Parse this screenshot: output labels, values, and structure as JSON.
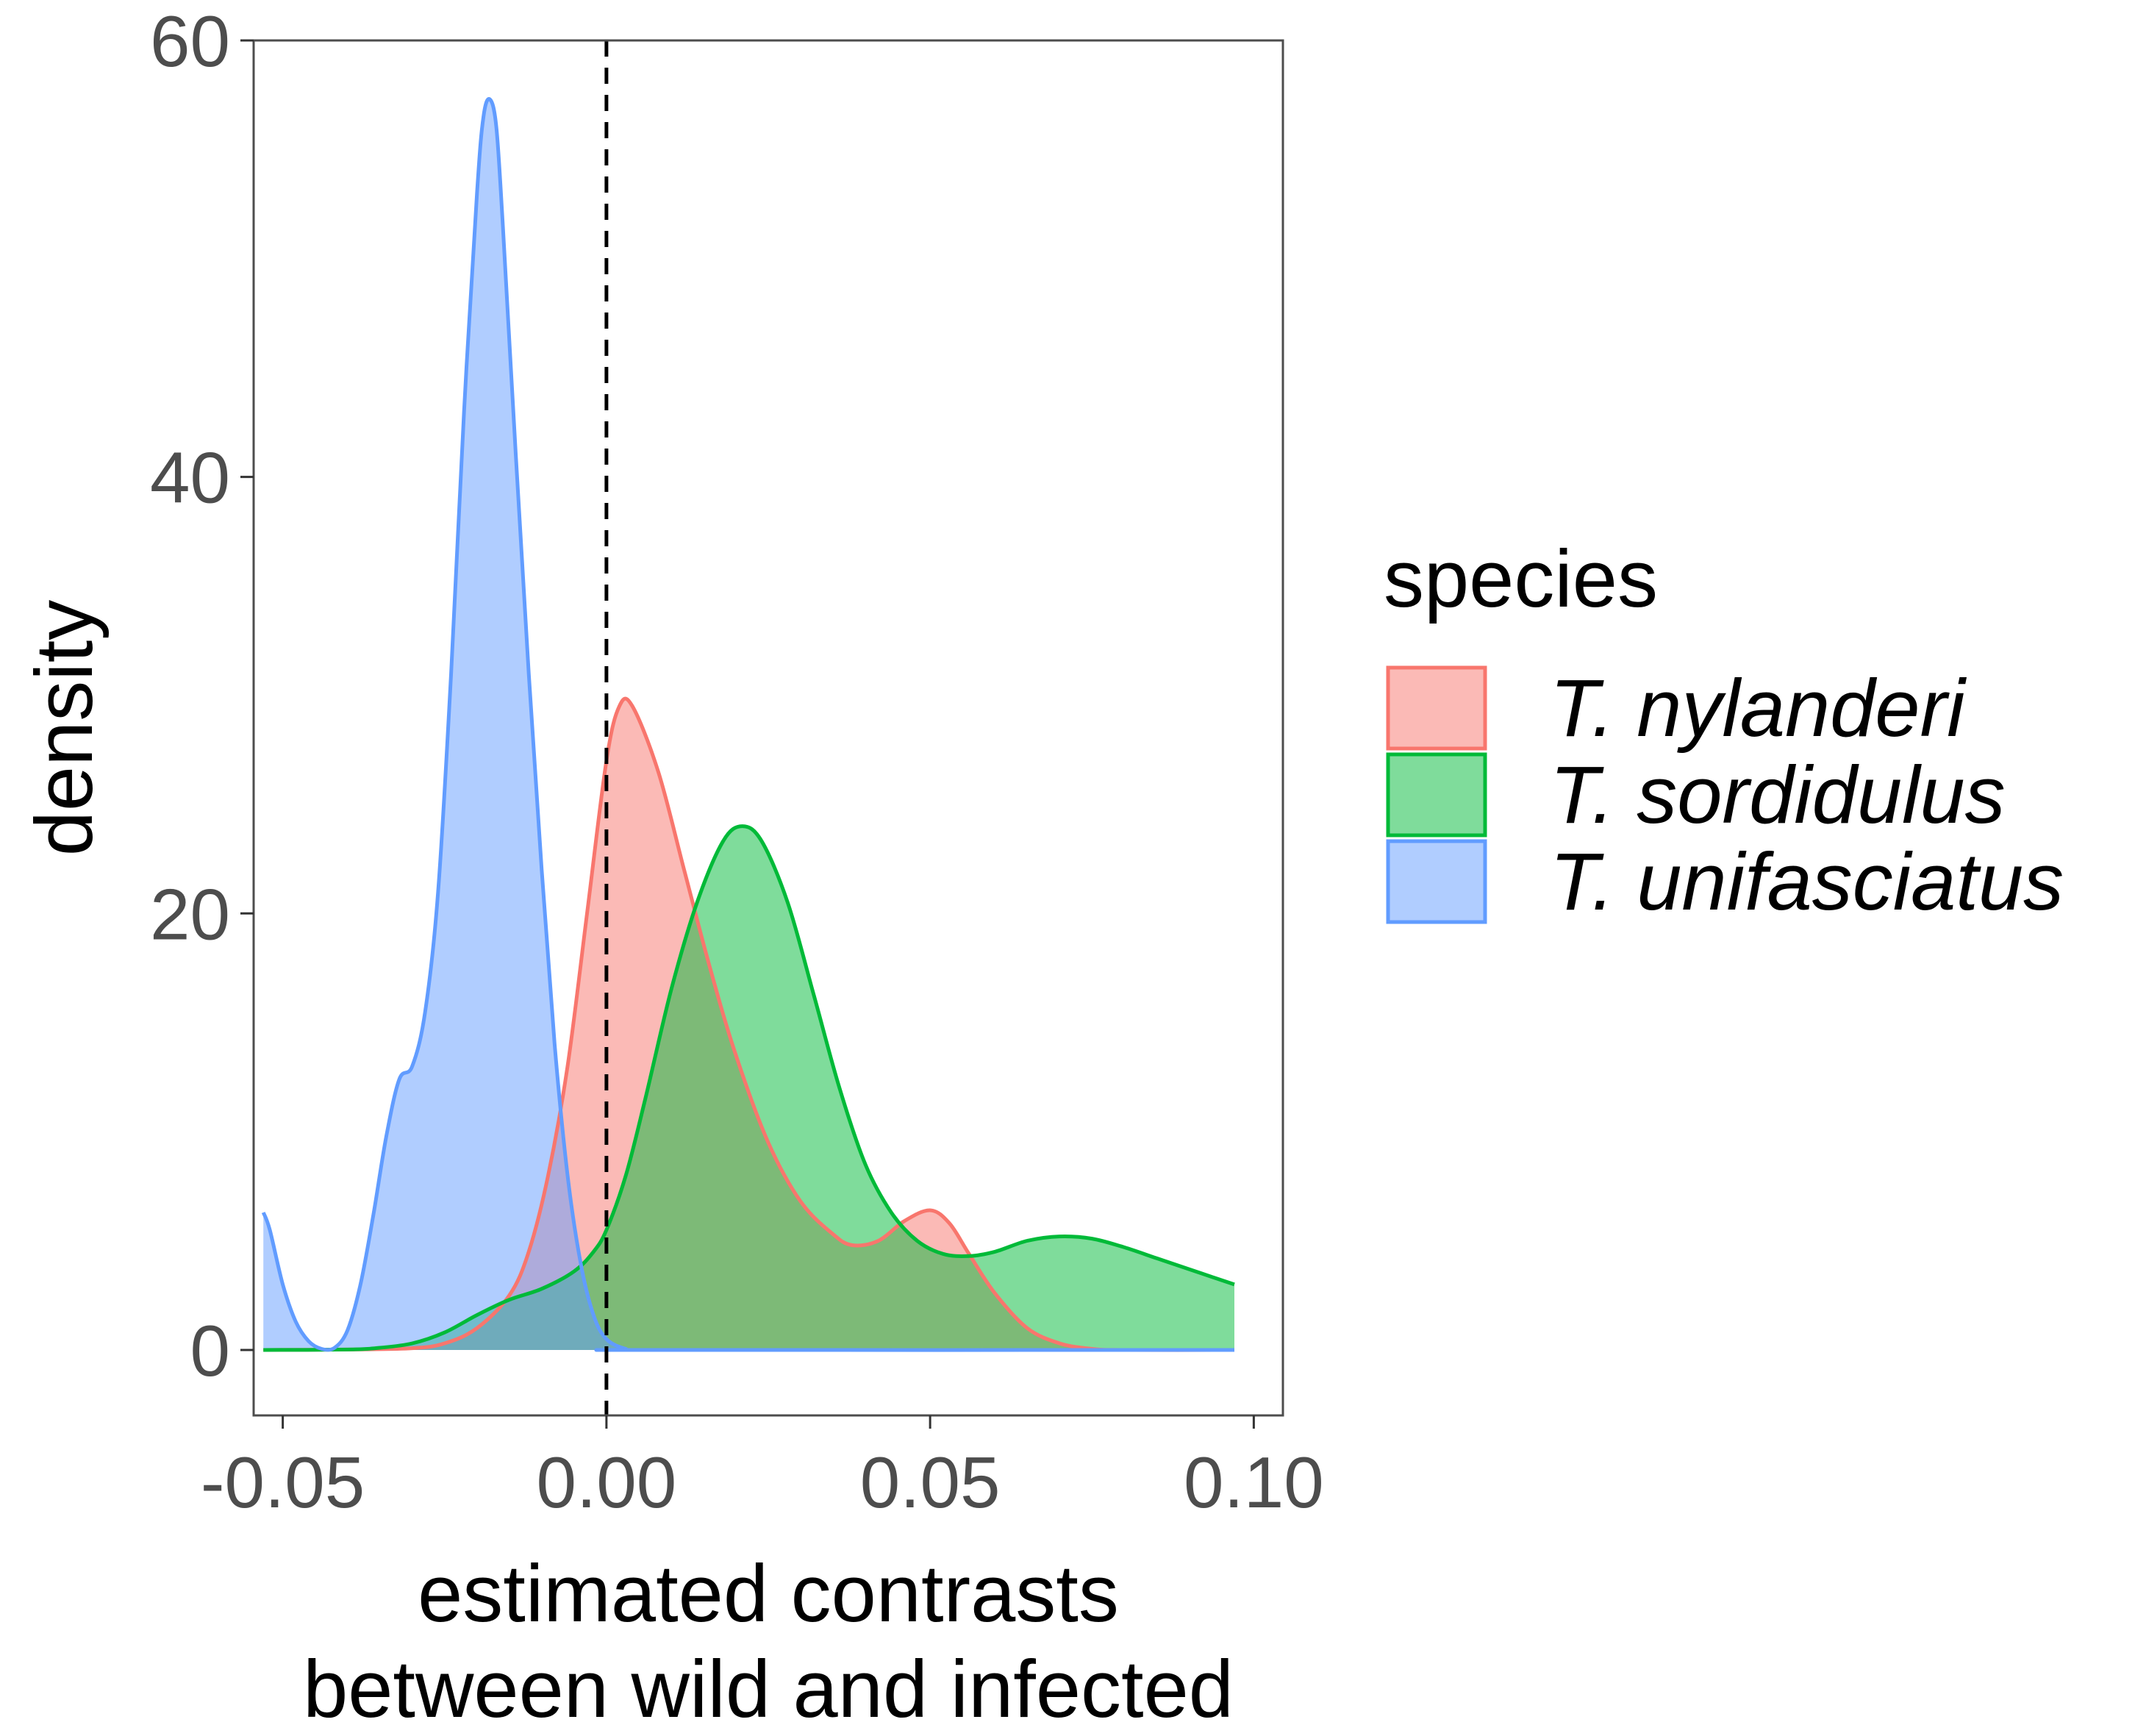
{
  "chart_data": {
    "type": "area",
    "title": "",
    "xlabel_lines": [
      "estimated contrasts",
      "between wild and infected"
    ],
    "ylabel": "density",
    "xlim": [
      -0.0545,
      0.1045
    ],
    "ylim": [
      -3,
      60
    ],
    "x_ticks": [
      -0.05,
      0.0,
      0.05,
      0.1
    ],
    "x_tick_labels": [
      "-0.05",
      "0.00",
      "0.05",
      "0.10"
    ],
    "y_ticks": [
      0,
      20,
      40,
      60
    ],
    "y_tick_labels": [
      "0",
      "20",
      "40",
      "60"
    ],
    "reference_line": {
      "x": 0.0,
      "style": "dashed"
    },
    "legend": {
      "title": "species",
      "position": "right"
    },
    "series": [
      {
        "name": "T. nylanderi",
        "fill": "#F8766D",
        "stroke": "#F8766D",
        "points": [
          [
            -0.053,
            0
          ],
          [
            -0.04,
            0.02
          ],
          [
            -0.03,
            0.08
          ],
          [
            -0.025,
            0.3
          ],
          [
            -0.02,
            1.0
          ],
          [
            -0.015,
            2.5
          ],
          [
            -0.012,
            4.5
          ],
          [
            -0.009,
            8
          ],
          [
            -0.006,
            13
          ],
          [
            -0.003,
            20
          ],
          [
            0.0,
            27
          ],
          [
            0.002,
            29.5
          ],
          [
            0.004,
            29.5
          ],
          [
            0.008,
            26.5
          ],
          [
            0.012,
            22
          ],
          [
            0.016,
            17.5
          ],
          [
            0.02,
            13.5
          ],
          [
            0.025,
            9.5
          ],
          [
            0.03,
            6.8
          ],
          [
            0.035,
            5.3
          ],
          [
            0.038,
            4.8
          ],
          [
            0.042,
            5.0
          ],
          [
            0.046,
            5.9
          ],
          [
            0.05,
            6.4
          ],
          [
            0.053,
            5.8
          ],
          [
            0.056,
            4.4
          ],
          [
            0.06,
            2.6
          ],
          [
            0.065,
            1.0
          ],
          [
            0.07,
            0.3
          ],
          [
            0.075,
            0.05
          ],
          [
            0.08,
            0
          ],
          [
            0.097,
            0
          ]
        ]
      },
      {
        "name": "T. sordidulus",
        "fill": "#00BA38",
        "stroke": "#00BA38",
        "points": [
          [
            -0.053,
            0
          ],
          [
            -0.04,
            0.02
          ],
          [
            -0.035,
            0.1
          ],
          [
            -0.03,
            0.3
          ],
          [
            -0.025,
            0.8
          ],
          [
            -0.02,
            1.6
          ],
          [
            -0.015,
            2.3
          ],
          [
            -0.01,
            2.8
          ],
          [
            -0.005,
            3.6
          ],
          [
            -0.002,
            4.5
          ],
          [
            0.0,
            5.5
          ],
          [
            0.003,
            8
          ],
          [
            0.006,
            11.5
          ],
          [
            0.01,
            16.5
          ],
          [
            0.014,
            20.5
          ],
          [
            0.018,
            23.3
          ],
          [
            0.021,
            24
          ],
          [
            0.024,
            23.3
          ],
          [
            0.028,
            20.5
          ],
          [
            0.032,
            16.3
          ],
          [
            0.036,
            12
          ],
          [
            0.04,
            8.5
          ],
          [
            0.044,
            6.3
          ],
          [
            0.048,
            5.0
          ],
          [
            0.052,
            4.4
          ],
          [
            0.056,
            4.3
          ],
          [
            0.06,
            4.5
          ],
          [
            0.065,
            5.0
          ],
          [
            0.07,
            5.2
          ],
          [
            0.075,
            5.1
          ],
          [
            0.08,
            4.7
          ],
          [
            0.085,
            4.2
          ],
          [
            0.09,
            3.7
          ],
          [
            0.095,
            3.2
          ],
          [
            0.097,
            3.0
          ]
        ]
      },
      {
        "name": "T. unifasciatus",
        "fill": "#619CFF",
        "stroke": "#619CFF",
        "points": [
          [
            -0.053,
            6.3
          ],
          [
            -0.052,
            5.5
          ],
          [
            -0.05,
            3.0
          ],
          [
            -0.048,
            1.3
          ],
          [
            -0.046,
            0.4
          ],
          [
            -0.044,
            0.05
          ],
          [
            -0.042,
            0.1
          ],
          [
            -0.04,
            0.9
          ],
          [
            -0.038,
            3.0
          ],
          [
            -0.036,
            6.2
          ],
          [
            -0.034,
            9.8
          ],
          [
            -0.032,
            12.4
          ],
          [
            -0.03,
            13.0
          ],
          [
            -0.028,
            15.5
          ],
          [
            -0.026,
            21
          ],
          [
            -0.024,
            31
          ],
          [
            -0.022,
            43
          ],
          [
            -0.02,
            53
          ],
          [
            -0.019,
            56.5
          ],
          [
            -0.018,
            57.3
          ],
          [
            -0.017,
            56
          ],
          [
            -0.016,
            51.5
          ],
          [
            -0.014,
            41
          ],
          [
            -0.012,
            31
          ],
          [
            -0.01,
            22
          ],
          [
            -0.008,
            14
          ],
          [
            -0.006,
            8
          ],
          [
            -0.004,
            4
          ],
          [
            -0.002,
            1.6
          ],
          [
            0.0,
            0.5
          ],
          [
            0.003,
            0.05
          ],
          [
            0.006,
            0
          ],
          [
            0.097,
            0
          ]
        ]
      }
    ]
  }
}
